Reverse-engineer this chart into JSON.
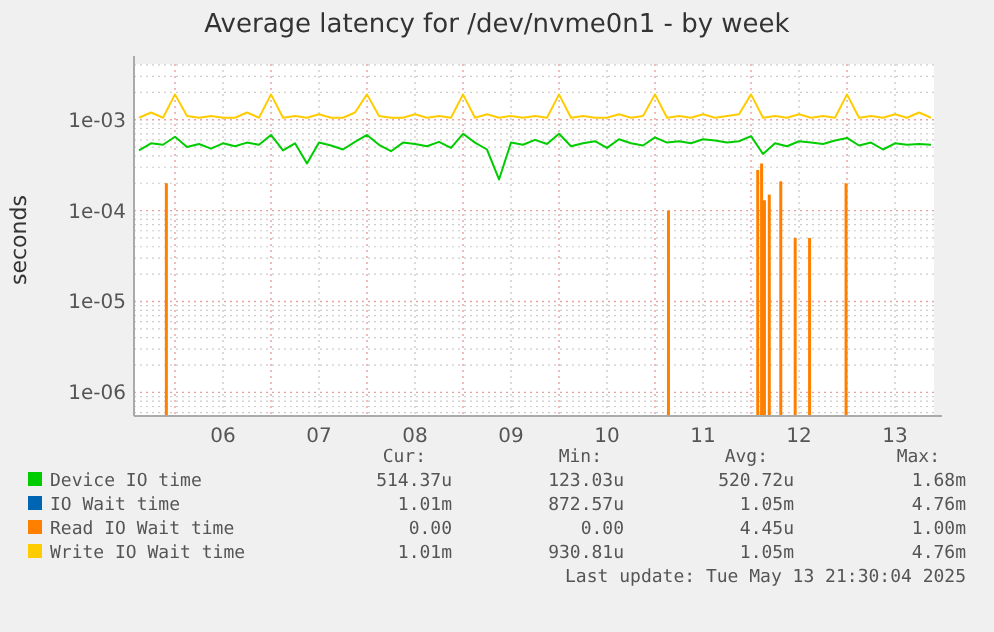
{
  "chart_data": {
    "type": "line",
    "title": "Average latency for /dev/nvme0n1 - by week",
    "ylabel": "seconds",
    "log": "y",
    "grid": true,
    "legend": "bottom",
    "xlim": [
      5.573,
      13.906
    ],
    "ylim": [
      5.5e-07,
      0.0041
    ],
    "xticks": [
      {
        "value": 6,
        "label": null
      },
      {
        "value": 6.5,
        "label": "06"
      },
      {
        "value": 7,
        "label": null
      },
      {
        "value": 7.5,
        "label": "07"
      },
      {
        "value": 8,
        "label": null
      },
      {
        "value": 8.5,
        "label": "08"
      },
      {
        "value": 9,
        "label": null
      },
      {
        "value": 9.5,
        "label": "09"
      },
      {
        "value": 10,
        "label": null
      },
      {
        "value": 10.5,
        "label": "10"
      },
      {
        "value": 11,
        "label": null
      },
      {
        "value": 11.5,
        "label": "11"
      },
      {
        "value": 12,
        "label": null
      },
      {
        "value": 12.5,
        "label": "12"
      },
      {
        "value": 13,
        "label": null
      },
      {
        "value": 13.5,
        "label": "13"
      }
    ],
    "yticks": [
      {
        "value": 1e-06,
        "label": "1e-06"
      },
      {
        "value": 1e-05,
        "label": "1e-05"
      },
      {
        "value": 0.0001,
        "label": "1e-04"
      },
      {
        "value": 0.001,
        "label": "1e-03"
      }
    ],
    "x": [
      5.625,
      5.75,
      5.875,
      6,
      6.125,
      6.25,
      6.375,
      6.5,
      6.625,
      6.75,
      6.875,
      7,
      7.125,
      7.25,
      7.375,
      7.5,
      7.625,
      7.75,
      7.875,
      8,
      8.125,
      8.25,
      8.375,
      8.5,
      8.625,
      8.75,
      8.875,
      9,
      9.125,
      9.25,
      9.375,
      9.5,
      9.625,
      9.75,
      9.875,
      10,
      10.125,
      10.25,
      10.375,
      10.5,
      10.625,
      10.75,
      10.875,
      11,
      11.125,
      11.25,
      11.375,
      11.5,
      11.625,
      11.75,
      11.875,
      12,
      12.125,
      12.25,
      12.375,
      12.5,
      12.625,
      12.75,
      12.875,
      13,
      13.125,
      13.25,
      13.375,
      13.5,
      13.625,
      13.75,
      13.875
    ],
    "series": [
      {
        "name": "Device IO time",
        "color": "#00cc00",
        "values": [
          0.00046,
          0.00055,
          0.00053,
          0.00065,
          0.0005,
          0.00054,
          0.00048,
          0.00055,
          0.00051,
          0.00056,
          0.00053,
          0.00068,
          0.00046,
          0.00055,
          0.00033,
          0.00056,
          0.00052,
          0.00047,
          0.00057,
          0.00068,
          0.00053,
          0.00045,
          0.00056,
          0.00054,
          0.00051,
          0.00057,
          0.00049,
          0.0007,
          0.00056,
          0.00047,
          0.00022,
          0.00056,
          0.00053,
          0.0006,
          0.00054,
          0.0007,
          0.00051,
          0.00055,
          0.00058,
          0.00049,
          0.00061,
          0.00055,
          0.00052,
          0.00064,
          0.00056,
          0.00058,
          0.00055,
          0.00061,
          0.00059,
          0.00056,
          0.00058,
          0.00066,
          0.00042,
          0.00055,
          0.00051,
          0.00058,
          0.00056,
          0.00054,
          0.00059,
          0.00063,
          0.00052,
          0.00056,
          0.00047,
          0.00055,
          0.00053,
          0.00054,
          0.00053
        ]
      },
      {
        "name": "IO Wait time",
        "color": "#0066b3",
        "values": [
          null,
          null,
          null,
          null,
          null,
          null,
          null,
          null,
          null,
          null,
          null,
          null,
          null,
          null,
          null,
          null,
          null,
          null,
          null,
          null,
          null,
          null,
          null,
          null,
          null,
          null,
          null,
          null,
          null,
          null,
          null,
          null,
          null,
          null,
          null,
          null,
          null,
          null,
          null,
          null,
          null,
          null,
          null,
          null,
          null,
          null,
          null,
          null,
          null,
          null,
          null,
          null,
          null,
          null,
          null,
          null,
          null,
          null,
          null,
          null,
          null,
          null,
          null,
          null,
          null,
          null,
          null
        ]
      },
      {
        "name": "Read IO Wait time",
        "color": "#ff8000",
        "type": "bar",
        "x": [
          5.91,
          11.14,
          12.07,
          12.11,
          12.14,
          12.19,
          12.31,
          12.46,
          12.61,
          12.99
        ],
        "values": [
          0.0002,
          0.0001,
          0.00028,
          0.00033,
          0.00013,
          0.00015,
          0.00021,
          5e-05,
          5e-05,
          0.0002
        ]
      },
      {
        "name": "Write IO Wait time",
        "color": "#ffcc00",
        "values": [
          0.00105,
          0.0012,
          0.00105,
          0.0019,
          0.0011,
          0.00105,
          0.0011,
          0.00105,
          0.00105,
          0.0012,
          0.00105,
          0.0019,
          0.00105,
          0.0011,
          0.00105,
          0.00115,
          0.00105,
          0.00105,
          0.0012,
          0.0019,
          0.0011,
          0.00105,
          0.00105,
          0.00115,
          0.00105,
          0.0011,
          0.00105,
          0.0019,
          0.00105,
          0.00115,
          0.00105,
          0.0011,
          0.00105,
          0.0011,
          0.00105,
          0.0019,
          0.00105,
          0.0011,
          0.00105,
          0.00105,
          0.00115,
          0.00105,
          0.0011,
          0.0019,
          0.00105,
          0.0011,
          0.00105,
          0.00115,
          0.00105,
          0.0011,
          0.00115,
          0.0019,
          0.00105,
          0.0011,
          0.00105,
          0.00115,
          0.00105,
          0.0011,
          0.00105,
          0.0019,
          0.00105,
          0.0011,
          0.00105,
          0.00115,
          0.00105,
          0.0012,
          0.00105
        ]
      }
    ],
    "annotations": [
      "Cur:",
      "Min:",
      "Avg:",
      "Max:",
      "514.37u",
      "123.03u",
      "520.72u",
      "1.68m",
      "1.01m",
      "872.57u",
      "1.05m",
      "4.76m",
      "0.00",
      "0.00",
      "4.45u",
      "1.00m",
      "1.01m",
      "930.81u",
      "1.05m",
      "4.76m",
      "Last update: Tue May 13 21:30:04 2025"
    ]
  }
}
